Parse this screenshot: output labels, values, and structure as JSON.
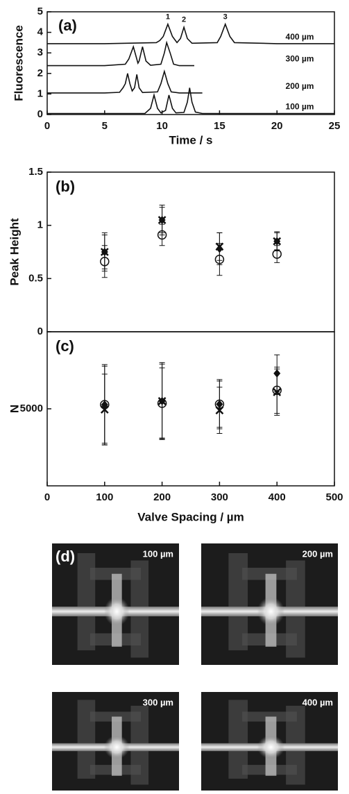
{
  "chart_data": [
    {
      "type": "line",
      "panel_label": "(a)",
      "ylabel": "Fluorescence",
      "xlabel": "Time / s",
      "xlim": [
        0,
        25
      ],
      "xticks": [
        0,
        5,
        10,
        15,
        20,
        25
      ],
      "ylim": [
        0,
        5
      ],
      "yticks": [
        0,
        1,
        2,
        3,
        4,
        5
      ],
      "series": [
        {
          "name": "400 µm",
          "color": "#111111",
          "x": [
            0,
            5,
            9.5,
            9.8,
            10.1,
            10.5,
            10.9,
            11.3,
            11.6,
            11.9,
            12.2,
            12.6,
            14.8,
            15.1,
            15.5,
            15.9,
            16.3,
            20,
            25
          ],
          "values": [
            3.45,
            3.45,
            3.5,
            3.6,
            3.8,
            4.4,
            3.8,
            3.5,
            3.7,
            4.25,
            3.7,
            3.47,
            3.5,
            3.8,
            4.4,
            3.8,
            3.5,
            3.45,
            3.45
          ]
        },
        {
          "name": "300 µm",
          "color": "#111111",
          "x": [
            0,
            5,
            6.8,
            7.1,
            7.5,
            7.9,
            8.0,
            8.3,
            8.6,
            9.0,
            9.9,
            10.2,
            10.4,
            10.7,
            11.0,
            11.5,
            12.8
          ],
          "values": [
            2.38,
            2.38,
            2.45,
            2.7,
            3.3,
            2.5,
            2.6,
            3.3,
            2.6,
            2.4,
            2.45,
            3.0,
            3.5,
            3.0,
            2.45,
            2.38,
            2.38
          ]
        },
        {
          "name": "200 µm",
          "color": "#111111",
          "x": [
            0,
            5,
            6.3,
            6.6,
            6.8,
            7.0,
            7.2,
            7.4,
            7.6,
            7.8,
            8.0,
            8.3,
            9.6,
            9.9,
            10.2,
            10.5,
            10.8,
            11.5,
            13.5
          ],
          "values": [
            1.05,
            1.05,
            1.08,
            1.3,
            1.5,
            2.0,
            1.5,
            1.15,
            1.3,
            1.95,
            1.3,
            1.07,
            1.1,
            1.5,
            2.1,
            1.5,
            1.1,
            1.05,
            1.05
          ]
        },
        {
          "name": "100 µm",
          "color": "#111111",
          "x": [
            0,
            5,
            8.5,
            8.8,
            9.0,
            9.3,
            9.6,
            9.9,
            10.3,
            10.6,
            10.9,
            11.2,
            11.9,
            12.2,
            12.4,
            12.6,
            12.9,
            13.5,
            18,
            25
          ],
          "values": [
            0.05,
            0.05,
            0.05,
            0.2,
            0.3,
            0.95,
            0.3,
            0.08,
            0.2,
            0.95,
            0.3,
            0.08,
            0.1,
            0.6,
            1.3,
            0.6,
            0.12,
            0.05,
            0.05,
            0.05
          ]
        }
      ],
      "annotations": [
        {
          "text": "1",
          "x": 10.5,
          "y": 4.75
        },
        {
          "text": "2",
          "x": 11.9,
          "y": 4.6
        },
        {
          "text": "3",
          "x": 15.5,
          "y": 4.75
        }
      ]
    },
    {
      "type": "scatter",
      "panel_label": "(b)",
      "ylabel": "Peak Height",
      "xlim": [
        0,
        500
      ],
      "ylim": [
        0,
        1.5
      ],
      "yticks": [
        0,
        0.5,
        1,
        1.5
      ],
      "series": [
        {
          "marker": "diamond",
          "color": "#111111",
          "x": [
            100,
            200,
            300,
            400
          ],
          "values": [
            0.75,
            1.05,
            0.78,
            0.85
          ],
          "errors": [
            0.18,
            0.14,
            0.15,
            0.09
          ]
        },
        {
          "marker": "cross",
          "color": "#111111",
          "x": [
            100,
            200,
            300,
            400
          ],
          "values": [
            0.75,
            1.05,
            0.8,
            0.85
          ],
          "errors": [
            0.16,
            0.12,
            0.13,
            0.08
          ]
        },
        {
          "marker": "circle",
          "color": "#111111",
          "x": [
            100,
            200,
            300,
            400
          ],
          "values": [
            0.66,
            0.91,
            0.68,
            0.73
          ],
          "errors": [
            0.15,
            0.1,
            0.15,
            0.08
          ]
        }
      ]
    },
    {
      "type": "scatter",
      "panel_label": "(c)",
      "ylabel": "N",
      "xlabel": "Valve Spacing / µm",
      "xlim": [
        0,
        500
      ],
      "xticks": [
        0,
        100,
        200,
        300,
        400,
        500
      ],
      "ylim": [
        0,
        10000
      ],
      "yticks": [
        5000
      ],
      "series": [
        {
          "marker": "diamond",
          "color": "#111111",
          "x": [
            100,
            200,
            300,
            400
          ],
          "values": [
            5270,
            5500,
            5300,
            7300
          ],
          "errors": [
            2500,
            2400,
            1600,
            1200
          ]
        },
        {
          "marker": "cross",
          "color": "#111111",
          "x": [
            100,
            200,
            300,
            400
          ],
          "values": [
            4950,
            5500,
            4900,
            6080
          ],
          "errors": [
            2300,
            2500,
            1500,
            1500
          ]
        },
        {
          "marker": "circle",
          "color": "#111111",
          "x": [
            100,
            200,
            300,
            400
          ],
          "values": [
            5270,
            5360,
            5300,
            6200
          ],
          "errors": [
            2600,
            2300,
            1500,
            1500
          ]
        }
      ]
    }
  ],
  "images": {
    "panel_label": "(d)",
    "items": [
      {
        "label": "100 µm"
      },
      {
        "label": "200 µm"
      },
      {
        "label": "300 µm"
      },
      {
        "label": "400 µm"
      }
    ]
  }
}
